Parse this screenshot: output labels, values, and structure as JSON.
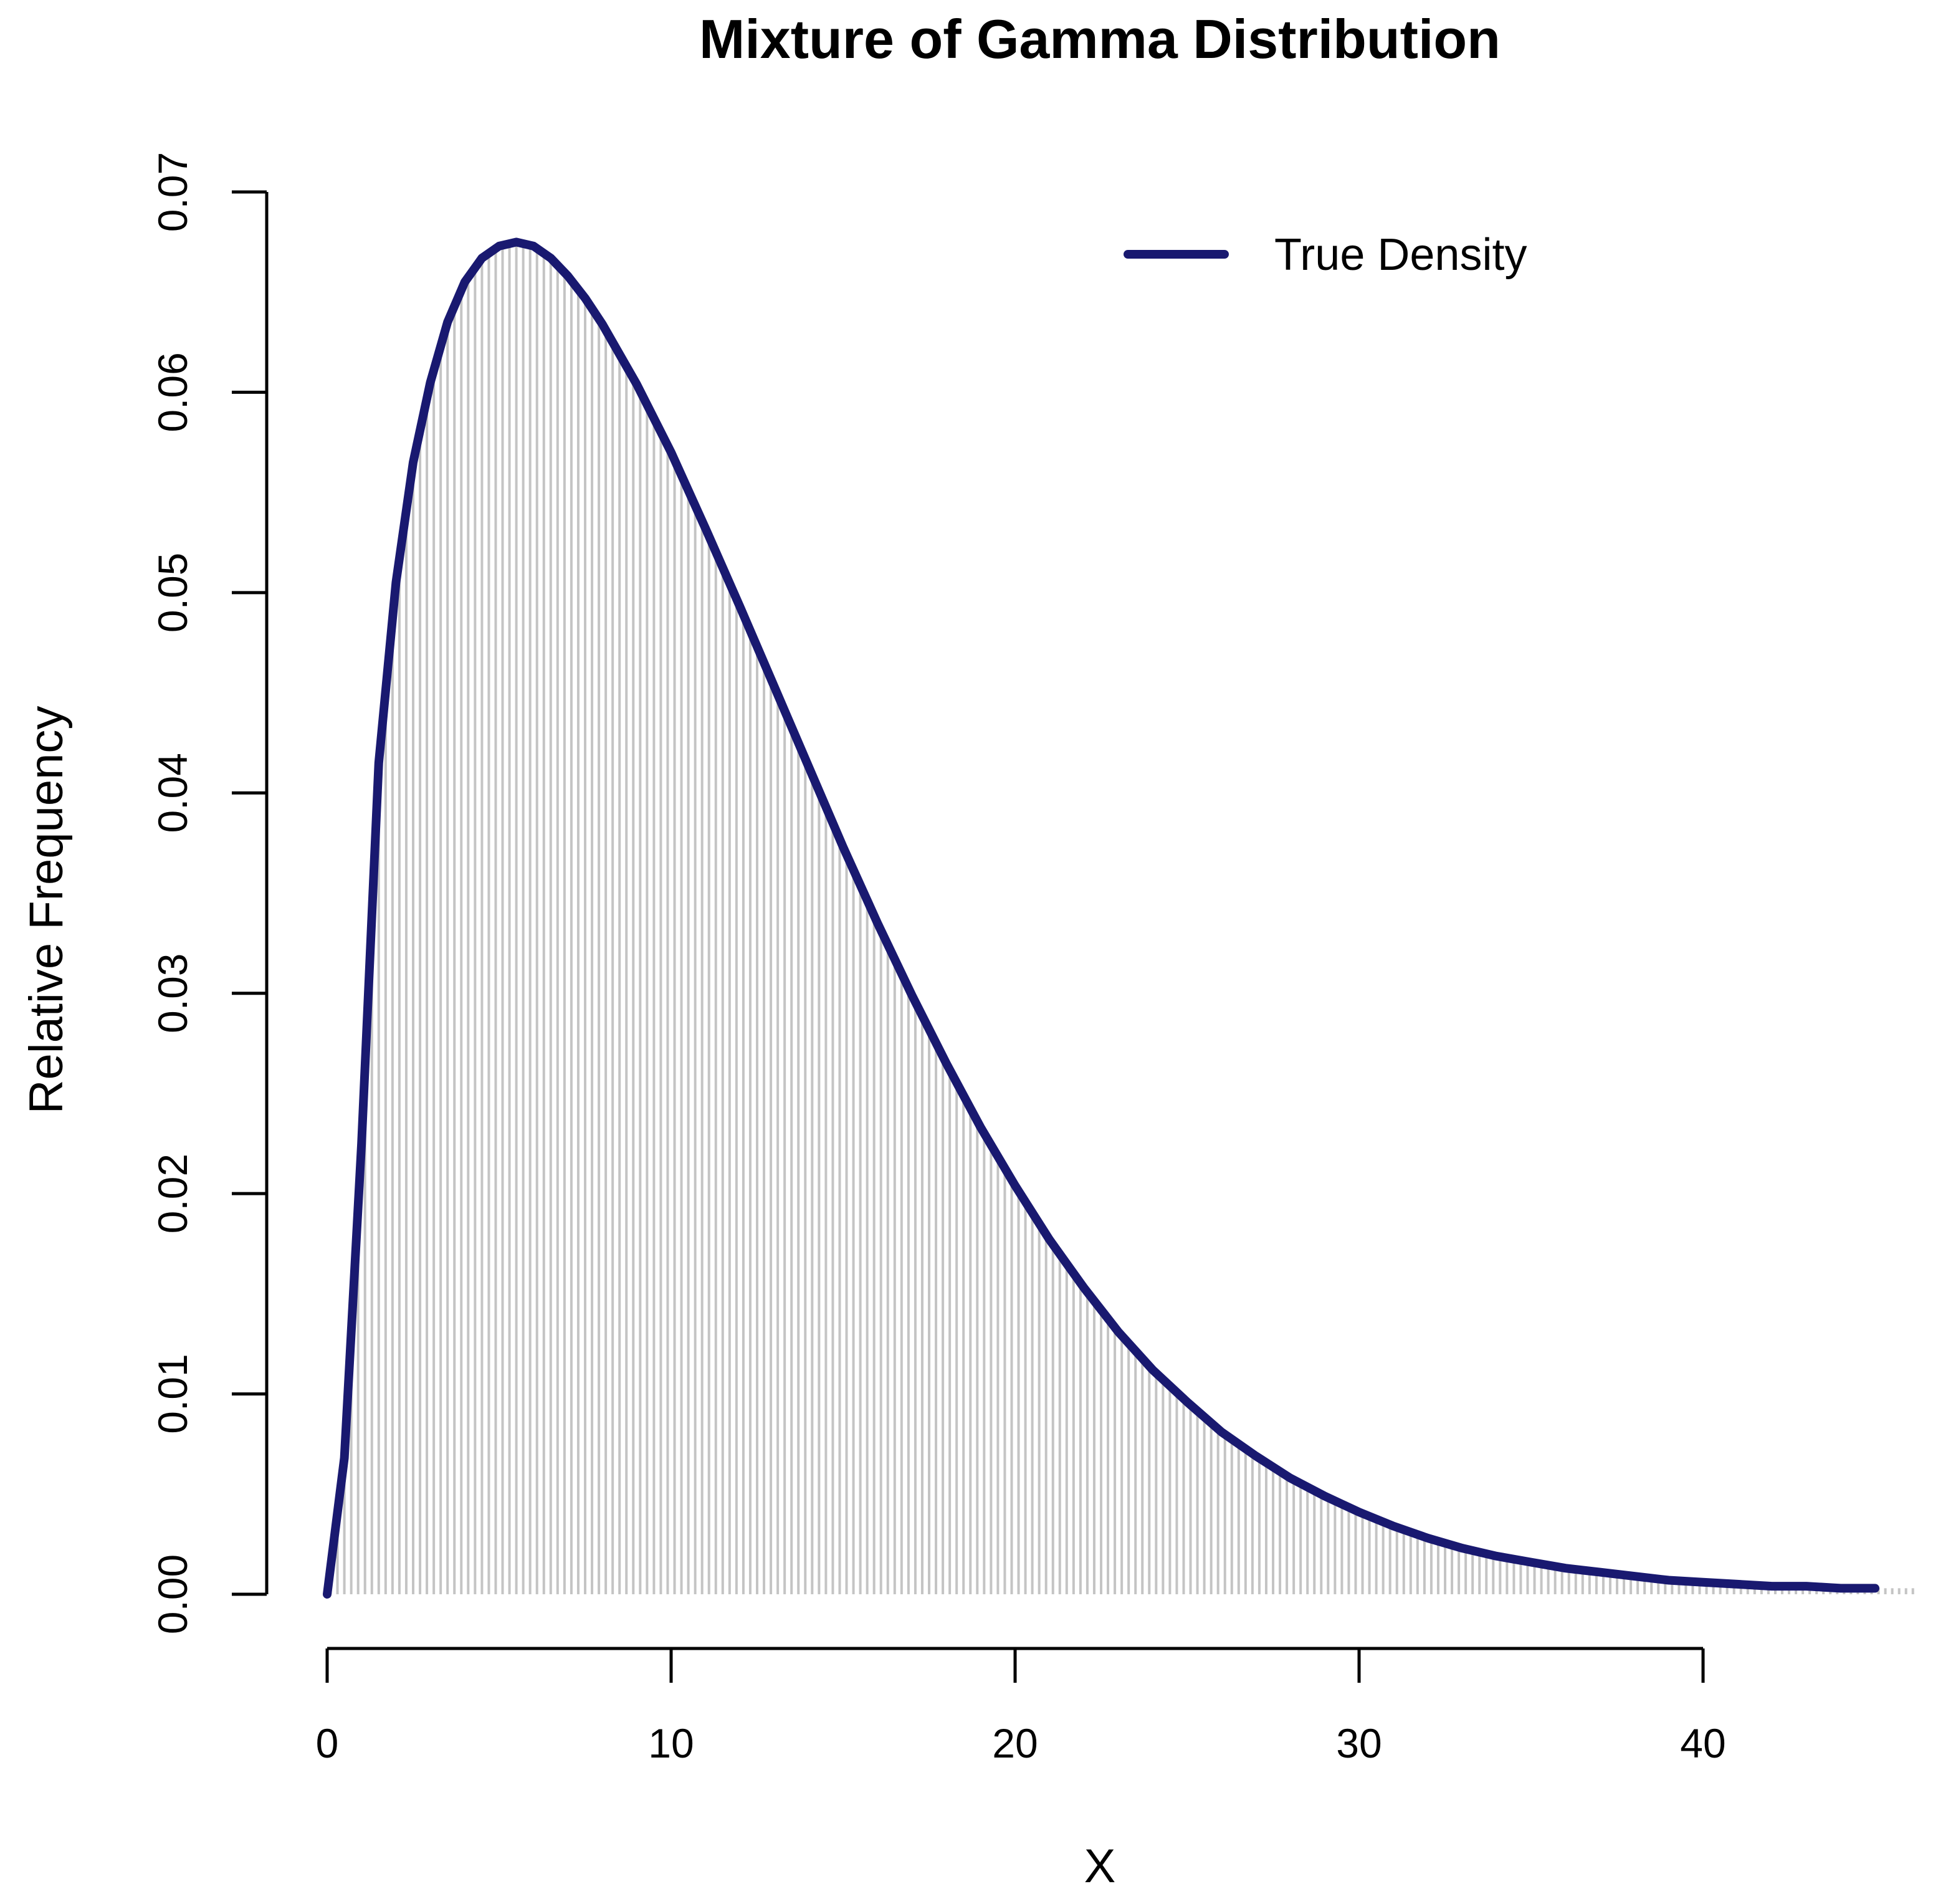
{
  "chart_data": {
    "type": "bar",
    "title": "Mixture of Gamma Distribution",
    "xlabel": "X",
    "ylabel": "Relative Frequency",
    "xlim": [
      0,
      46
    ],
    "ylim": [
      0,
      0.07
    ],
    "x_ticks": [
      0,
      10,
      20,
      30,
      40
    ],
    "x_tick_labels": [
      "0",
      "10",
      "20",
      "30",
      "40"
    ],
    "y_ticks": [
      0,
      0.01,
      0.02,
      0.03,
      0.04,
      0.05,
      0.06,
      0.07
    ],
    "y_tick_labels": [
      "0.00",
      "0.01",
      "0.02",
      "0.03",
      "0.04",
      "0.05",
      "0.06",
      "0.07"
    ],
    "grid": false,
    "legend": {
      "position": "top-right",
      "entries": [
        {
          "label": "True Density",
          "color": "#191970",
          "style": "line"
        }
      ]
    },
    "colors": {
      "histogram": "#c4c4c4",
      "density": "#191970"
    },
    "series": [
      {
        "name": "True Density",
        "type": "line",
        "x": [
          0,
          0.5,
          1,
          1.5,
          2,
          2.5,
          3,
          3.5,
          4,
          4.5,
          5,
          5.5,
          6,
          6.5,
          7,
          7.5,
          8,
          9,
          10,
          11,
          12,
          13,
          14,
          15,
          16,
          17,
          18,
          19,
          20,
          21,
          22,
          23,
          24,
          25,
          26,
          27,
          28,
          29,
          30,
          31,
          32,
          33,
          34,
          35,
          36,
          37,
          38,
          39,
          40,
          41,
          42,
          43,
          44,
          45
        ],
        "y": [
          0,
          0.0068,
          0.0225,
          0.0415,
          0.0505,
          0.0565,
          0.0605,
          0.0635,
          0.0655,
          0.0667,
          0.0673,
          0.0675,
          0.0673,
          0.0667,
          0.0658,
          0.0647,
          0.0634,
          0.0604,
          0.057,
          0.0532,
          0.0493,
          0.0453,
          0.0413,
          0.0373,
          0.0335,
          0.0299,
          0.0265,
          0.0233,
          0.0204,
          0.0177,
          0.0153,
          0.0131,
          0.0112,
          0.0096,
          0.0081,
          0.0069,
          0.0058,
          0.0049,
          0.0041,
          0.0034,
          0.0028,
          0.0023,
          0.0019,
          0.0016,
          0.0013,
          0.0011,
          0.0009,
          0.0007,
          0.0006,
          0.0005,
          0.0004,
          0.0004,
          0.0003,
          0.0003
        ]
      }
    ]
  }
}
